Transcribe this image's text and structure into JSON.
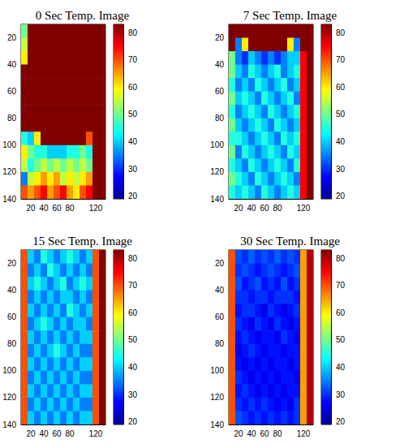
{
  "chart_data": [
    {
      "type": "heatmap",
      "title": "0 Sec Temp. Image",
      "x": [
        10,
        20,
        30,
        40,
        50,
        60,
        70,
        80,
        90,
        100,
        110,
        120,
        130
      ],
      "y": [
        15,
        25,
        35,
        45,
        55,
        65,
        75,
        85,
        95,
        105,
        115,
        125,
        135
      ],
      "cells": [
        [
          50,
          83,
          83,
          83,
          83,
          83,
          83,
          83,
          83,
          83,
          83,
          83,
          83
        ],
        [
          55,
          83,
          83,
          83,
          83,
          83,
          83,
          83,
          83,
          83,
          83,
          83,
          83
        ],
        [
          60,
          83,
          83,
          83,
          83,
          83,
          83,
          83,
          83,
          83,
          83,
          83,
          83
        ],
        [
          83,
          83,
          83,
          83,
          83,
          83,
          83,
          83,
          83,
          83,
          83,
          83,
          83
        ],
        [
          83,
          83,
          83,
          83,
          83,
          83,
          83,
          83,
          83,
          83,
          83,
          83,
          83
        ],
        [
          83,
          83,
          83,
          83,
          83,
          83,
          83,
          83,
          83,
          83,
          83,
          83,
          83
        ],
        [
          83,
          83,
          83,
          83,
          83,
          83,
          83,
          83,
          83,
          83,
          83,
          83,
          83
        ],
        [
          83,
          83,
          83,
          83,
          83,
          83,
          83,
          83,
          83,
          83,
          83,
          83,
          83
        ],
        [
          45,
          40,
          60,
          83,
          83,
          83,
          83,
          83,
          83,
          83,
          70,
          83,
          83
        ],
        [
          60,
          50,
          45,
          45,
          40,
          40,
          40,
          45,
          45,
          50,
          45,
          83,
          83
        ],
        [
          55,
          45,
          50,
          55,
          50,
          55,
          50,
          55,
          50,
          55,
          50,
          83,
          83
        ],
        [
          35,
          55,
          60,
          65,
          60,
          65,
          55,
          60,
          55,
          60,
          65,
          83,
          83
        ],
        [
          70,
          65,
          70,
          75,
          65,
          70,
          75,
          65,
          60,
          70,
          75,
          83,
          83
        ]
      ],
      "xlim": [
        5,
        135
      ],
      "ylim": [
        10,
        140
      ],
      "xticks": [
        20,
        40,
        60,
        80,
        100,
        120
      ],
      "yticks": [
        20,
        40,
        60,
        80,
        100,
        120,
        140
      ],
      "colorbar_lim": [
        19,
        83
      ],
      "colorbar_ticks": [
        20,
        30,
        40,
        50,
        60,
        70,
        80
      ]
    },
    {
      "type": "heatmap",
      "title": "7 Sec Temp. Image",
      "x": [
        10,
        20,
        30,
        40,
        50,
        60,
        70,
        80,
        90,
        100,
        110,
        120,
        130
      ],
      "y": [
        15,
        25,
        35,
        45,
        55,
        65,
        75,
        85,
        95,
        105,
        115,
        125,
        135
      ],
      "cells": [
        [
          83,
          83,
          83,
          83,
          83,
          83,
          83,
          83,
          83,
          83,
          83,
          83,
          83
        ],
        [
          83,
          35,
          60,
          83,
          83,
          83,
          83,
          83,
          83,
          60,
          35,
          83,
          83
        ],
        [
          50,
          35,
          30,
          40,
          35,
          30,
          35,
          30,
          35,
          40,
          40,
          75,
          83
        ],
        [
          50,
          40,
          35,
          45,
          40,
          35,
          40,
          45,
          35,
          40,
          45,
          75,
          83
        ],
        [
          45,
          35,
          40,
          35,
          45,
          40,
          35,
          40,
          45,
          35,
          40,
          75,
          83
        ],
        [
          50,
          40,
          45,
          40,
          35,
          45,
          40,
          35,
          40,
          45,
          35,
          75,
          83
        ],
        [
          45,
          35,
          40,
          45,
          40,
          35,
          45,
          40,
          35,
          40,
          45,
          75,
          83
        ],
        [
          50,
          40,
          35,
          40,
          45,
          40,
          35,
          45,
          40,
          35,
          40,
          75,
          83
        ],
        [
          45,
          45,
          40,
          35,
          40,
          45,
          40,
          35,
          45,
          40,
          45,
          75,
          83
        ],
        [
          50,
          35,
          45,
          40,
          35,
          40,
          45,
          40,
          35,
          45,
          40,
          75,
          83
        ],
        [
          45,
          40,
          35,
          45,
          40,
          35,
          40,
          45,
          40,
          35,
          45,
          75,
          83
        ],
        [
          50,
          45,
          40,
          35,
          45,
          40,
          35,
          40,
          45,
          40,
          35,
          75,
          83
        ],
        [
          45,
          40,
          45,
          40,
          35,
          45,
          40,
          35,
          40,
          45,
          40,
          75,
          83
        ]
      ],
      "xlim": [
        5,
        135
      ],
      "ylim": [
        10,
        140
      ],
      "xticks": [
        20,
        40,
        60,
        80,
        100,
        120
      ],
      "yticks": [
        20,
        40,
        60,
        80,
        100,
        120,
        140
      ],
      "colorbar_lim": [
        19,
        83
      ],
      "colorbar_ticks": [
        20,
        30,
        40,
        50,
        60,
        70,
        80
      ]
    },
    {
      "type": "heatmap",
      "title": "15 Sec Temp. Image",
      "x": [
        10,
        20,
        30,
        40,
        50,
        60,
        70,
        80,
        90,
        100,
        110,
        120,
        130
      ],
      "y": [
        15,
        25,
        35,
        45,
        55,
        65,
        75,
        85,
        95,
        105,
        115,
        125,
        135
      ],
      "cells": [
        [
          70,
          40,
          35,
          45,
          40,
          35,
          40,
          45,
          40,
          35,
          40,
          70,
          83
        ],
        [
          70,
          35,
          40,
          35,
          45,
          40,
          35,
          40,
          35,
          40,
          35,
          70,
          83
        ],
        [
          70,
          40,
          45,
          40,
          35,
          40,
          45,
          35,
          40,
          45,
          40,
          70,
          83
        ],
        [
          70,
          35,
          40,
          35,
          40,
          35,
          40,
          40,
          35,
          40,
          35,
          70,
          83
        ],
        [
          70,
          40,
          35,
          40,
          35,
          40,
          35,
          45,
          40,
          35,
          40,
          70,
          83
        ],
        [
          70,
          35,
          40,
          45,
          40,
          35,
          40,
          35,
          40,
          40,
          35,
          70,
          83
        ],
        [
          70,
          40,
          35,
          40,
          35,
          40,
          35,
          40,
          35,
          40,
          40,
          70,
          83
        ],
        [
          70,
          35,
          40,
          35,
          40,
          45,
          40,
          35,
          40,
          35,
          35,
          70,
          83
        ],
        [
          70,
          40,
          35,
          40,
          35,
          40,
          35,
          40,
          35,
          40,
          40,
          70,
          83
        ],
        [
          70,
          35,
          40,
          35,
          40,
          35,
          40,
          35,
          40,
          35,
          35,
          70,
          83
        ],
        [
          70,
          40,
          35,
          40,
          35,
          40,
          35,
          40,
          35,
          40,
          40,
          70,
          83
        ],
        [
          70,
          35,
          40,
          35,
          40,
          35,
          40,
          35,
          40,
          35,
          35,
          70,
          83
        ],
        [
          70,
          40,
          35,
          40,
          35,
          40,
          35,
          40,
          35,
          40,
          40,
          70,
          83
        ]
      ],
      "xlim": [
        5,
        135
      ],
      "ylim": [
        10,
        140
      ],
      "xticks": [
        20,
        40,
        60,
        80,
        100,
        120
      ],
      "yticks": [
        20,
        40,
        60,
        80,
        100,
        120,
        140
      ],
      "colorbar_lim": [
        19,
        83
      ],
      "colorbar_ticks": [
        20,
        30,
        40,
        50,
        60,
        70,
        80
      ]
    },
    {
      "type": "heatmap",
      "title": "30 Sec Temp. Image",
      "x": [
        10,
        20,
        30,
        40,
        50,
        60,
        70,
        80,
        90,
        100,
        110,
        120,
        130
      ],
      "y": [
        15,
        25,
        35,
        45,
        55,
        65,
        75,
        85,
        95,
        105,
        115,
        125,
        135
      ],
      "cells": [
        [
          70,
          32,
          30,
          33,
          30,
          32,
          30,
          33,
          30,
          32,
          30,
          65,
          80
        ],
        [
          70,
          30,
          32,
          30,
          28,
          30,
          32,
          30,
          28,
          30,
          32,
          65,
          80
        ],
        [
          70,
          32,
          28,
          30,
          32,
          28,
          30,
          28,
          32,
          28,
          30,
          65,
          80
        ],
        [
          70,
          30,
          30,
          28,
          30,
          30,
          28,
          30,
          30,
          30,
          28,
          65,
          80
        ],
        [
          70,
          28,
          30,
          30,
          28,
          26,
          30,
          28,
          26,
          28,
          30,
          65,
          80
        ],
        [
          70,
          30,
          28,
          26,
          30,
          28,
          26,
          30,
          28,
          26,
          28,
          65,
          80
        ],
        [
          70,
          28,
          30,
          28,
          26,
          28,
          28,
          26,
          30,
          28,
          26,
          65,
          80
        ],
        [
          70,
          26,
          28,
          30,
          28,
          26,
          28,
          28,
          26,
          28,
          28,
          65,
          80
        ],
        [
          70,
          28,
          26,
          28,
          26,
          28,
          26,
          28,
          28,
          26,
          28,
          65,
          80
        ],
        [
          70,
          30,
          28,
          26,
          28,
          26,
          28,
          26,
          28,
          28,
          26,
          65,
          80
        ],
        [
          70,
          28,
          30,
          28,
          26,
          28,
          26,
          28,
          26,
          28,
          28,
          65,
          80
        ],
        [
          70,
          30,
          28,
          30,
          28,
          30,
          28,
          26,
          28,
          26,
          30,
          65,
          80
        ],
        [
          70,
          32,
          30,
          28,
          30,
          28,
          30,
          28,
          30,
          28,
          30,
          65,
          80
        ]
      ],
      "xlim": [
        5,
        135
      ],
      "ylim": [
        10,
        140
      ],
      "xticks": [
        20,
        40,
        60,
        80,
        100,
        120
      ],
      "yticks": [
        20,
        40,
        60,
        80,
        100,
        120,
        140
      ],
      "colorbar_lim": [
        19,
        83
      ],
      "colorbar_ticks": [
        20,
        30,
        40,
        50,
        60,
        70,
        80
      ]
    }
  ]
}
